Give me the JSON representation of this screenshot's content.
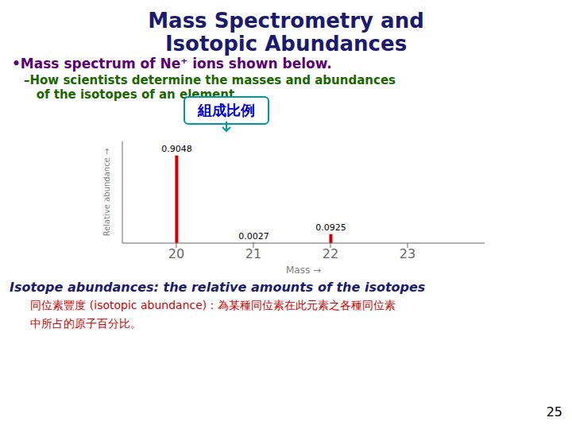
{
  "chart_data": {
    "type": "bar",
    "title": [
      "Mass Spectrometry and",
      "Isotopic Abundances"
    ],
    "x_label": "Mass  →",
    "y_label": "Relative abundance  →",
    "x": [
      20,
      21,
      22
    ],
    "values": [
      0.9048,
      0.0027,
      0.0925
    ],
    "color": "#cc0000",
    "xlim": [
      19.3,
      24.0
    ],
    "xticks": [
      20,
      21,
      22,
      23
    ],
    "ylim": [
      0,
      1.05
    ],
    "data_labels": true,
    "tick_labels": "x",
    "grid": false,
    "annotations": [
      {
        "text": "•Mass spectrum of Ne⁺ ions shown below.",
        "color": "#5b0070"
      },
      {
        "text": "–How scientists determine the masses and abundances",
        "color": "#1a6600"
      },
      {
        "text": "   of the isotopes of an element.",
        "color": "#1a6600"
      },
      {
        "text": "組成比例",
        "color": "#0000cc"
      },
      {
        "text": "Isotope abundances: the relative amounts of the isotopes",
        "color": "#1a1a6e"
      },
      {
        "text": "   同位素豐度 (isotopic abundance)：為某種同位素在此元素之各種同位素",
        "color": "#cc0000"
      },
      {
        "text": "   中所占的原子百分比。",
        "color": "#cc0000"
      },
      {
        "text": "25",
        "color": "#000000"
      }
    ]
  }
}
